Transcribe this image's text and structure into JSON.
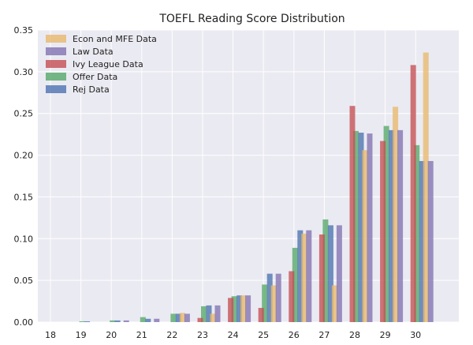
{
  "chart_data": {
    "type": "bar",
    "title": "TOEFL Reading Score Distribution",
    "xlabel": "",
    "ylabel": "",
    "categories": [
      "18",
      "19",
      "20",
      "21",
      "22",
      "23",
      "24",
      "25",
      "26",
      "27",
      "28",
      "29",
      "30"
    ],
    "ylim": [
      0,
      0.35
    ],
    "yticks": [
      "0.00",
      "0.05",
      "0.10",
      "0.15",
      "0.20",
      "0.25",
      "0.30",
      "0.35"
    ],
    "grid": true,
    "legend_position": "top-left",
    "series": [
      {
        "name": "Offer Data",
        "color": "#55a868",
        "values": [
          0.0,
          0.001,
          0.002,
          0.006,
          0.01,
          0.019,
          0.031,
          0.045,
          0.089,
          0.123,
          0.229,
          0.235,
          0.212
        ]
      },
      {
        "name": "Rej Data",
        "color": "#4c72b0",
        "values": [
          0.0,
          0.001,
          0.002,
          0.004,
          0.01,
          0.02,
          0.032,
          0.058,
          0.11,
          0.116,
          0.227,
          0.23,
          0.193
        ]
      },
      {
        "name": "Econ and MFE Data",
        "color": "#e8b86d",
        "values": [
          0.0,
          0.0,
          0.0,
          0.0,
          0.011,
          0.01,
          0.032,
          0.044,
          0.106,
          0.044,
          0.206,
          0.258,
          0.323
        ]
      },
      {
        "name": "Law Data",
        "color": "#8172b2",
        "values": [
          0.0,
          0.0,
          0.002,
          0.004,
          0.01,
          0.02,
          0.032,
          0.058,
          0.11,
          0.116,
          0.226,
          0.23,
          0.193
        ]
      },
      {
        "name": "Ivy League Data",
        "color": "#c44e52",
        "values": [
          0.0,
          0.0,
          0.0,
          0.0,
          0.0,
          0.005,
          0.029,
          0.017,
          0.061,
          0.105,
          0.259,
          0.217,
          0.308
        ]
      }
    ],
    "legend_order": [
      "Econ and MFE Data",
      "Law Data",
      "Ivy League Data",
      "Offer Data",
      "Rej Data"
    ]
  }
}
